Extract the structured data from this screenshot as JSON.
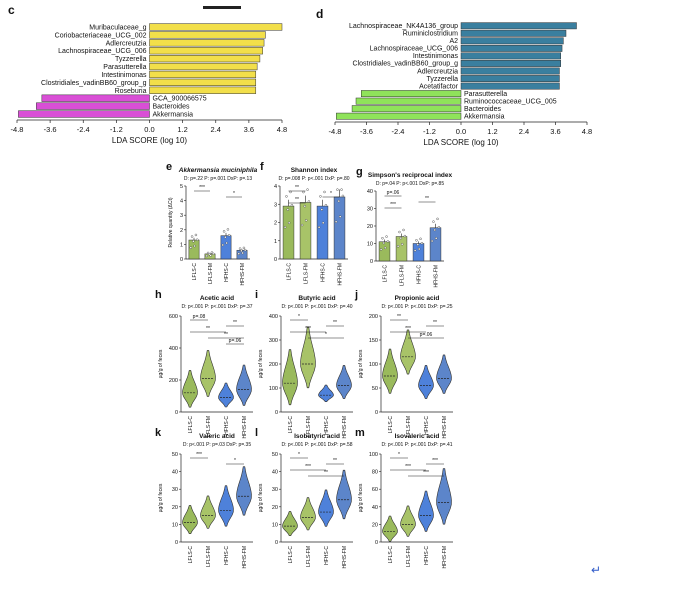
{
  "colors": {
    "yellow": "#f2df4a",
    "magenta": "#d94fd6",
    "blue": "#3a7f9f",
    "green": "#8fe35a",
    "lf_c": "#8fb34a",
    "lf_fm": "#9ebd58",
    "hf_c": "#3b73d6",
    "hf_fm": "#4a78c4",
    "return": "#2d59c8"
  },
  "panel_c": {
    "letter": "c",
    "xlabel": "LDA SCORE (log 10)",
    "ticks": [
      "-4.8",
      "-3.6",
      "-2.4",
      "-1.2",
      "0.0",
      "1.2",
      "2.4",
      "3.6",
      "4.8"
    ],
    "tick_values": [
      -4.8,
      -3.6,
      -2.4,
      -1.2,
      0,
      1.2,
      2.4,
      3.6,
      4.8
    ],
    "bars": [
      {
        "label": "Muribaculaceae_g",
        "value": 4.8,
        "group": "pos"
      },
      {
        "label": "Coriobacteriaceae_UCG_002",
        "value": 4.2,
        "group": "pos"
      },
      {
        "label": "Adlercreutzia",
        "value": 4.15,
        "group": "pos"
      },
      {
        "label": "Lachnospiraceae_UCG_006",
        "value": 4.1,
        "group": "pos"
      },
      {
        "label": "Tyzzerella",
        "value": 4.0,
        "group": "pos"
      },
      {
        "label": "Parasutterella",
        "value": 3.9,
        "group": "pos"
      },
      {
        "label": "Intestinimonas",
        "value": 3.85,
        "group": "pos"
      },
      {
        "label": "Clostridiales_vadinBB60_group_g",
        "value": 3.85,
        "group": "pos"
      },
      {
        "label": "Roseburia",
        "value": 3.85,
        "group": "pos"
      },
      {
        "label": "GCA_900066575",
        "value": -3.9,
        "group": "neg"
      },
      {
        "label": "Bacteroides",
        "value": -4.1,
        "group": "neg"
      },
      {
        "label": "Akkermansia",
        "value": -4.75,
        "group": "neg"
      }
    ]
  },
  "panel_d": {
    "letter": "d",
    "xlabel": "LDA SCORE (log 10)",
    "ticks": [
      "-4.8",
      "-3.6",
      "-2.4",
      "-1.2",
      "0.0",
      "1.2",
      "2.4",
      "3.6",
      "4.8"
    ],
    "tick_values": [
      -4.8,
      -3.6,
      -2.4,
      -1.2,
      0,
      1.2,
      2.4,
      3.6,
      4.8
    ],
    "bars": [
      {
        "label": "Lachnospiraceae_NK4A136_group",
        "value": 4.4,
        "group": "pos"
      },
      {
        "label": "Ruminiclostridium",
        "value": 4.0,
        "group": "pos"
      },
      {
        "label": "A2",
        "value": 3.9,
        "group": "pos"
      },
      {
        "label": "Lachnospiraceae_UCG_006",
        "value": 3.85,
        "group": "pos"
      },
      {
        "label": "Intestinimonas",
        "value": 3.8,
        "group": "pos"
      },
      {
        "label": "Clostridiales_vadinBB60_group_g",
        "value": 3.8,
        "group": "pos"
      },
      {
        "label": "Adlercreutzia",
        "value": 3.75,
        "group": "pos"
      },
      {
        "label": "Tyzzerella",
        "value": 3.75,
        "group": "pos"
      },
      {
        "label": "Acetatifactor",
        "value": 3.75,
        "group": "pos"
      },
      {
        "label": "Parasutterella",
        "value": -3.8,
        "group": "neg"
      },
      {
        "label": "Ruminococcaceae_UCG_005",
        "value": -4.0,
        "group": "neg"
      },
      {
        "label": "Bacteroides",
        "value": -4.15,
        "group": "neg"
      },
      {
        "label": "Akkermansia",
        "value": -4.75,
        "group": "neg"
      }
    ]
  },
  "groups": [
    "LFLS-C",
    "LFLS-FM",
    "HFHS-C",
    "HFHS-FM"
  ],
  "bar_panels": [
    {
      "id": "e",
      "letter": "e",
      "title": "Akkermansia muciniphila",
      "italic": true,
      "stats": "D: p=.22   P: p=.001   DxP: p=.13",
      "ylabel": "Relative quantity (ΔCt)",
      "ylim": [
        0,
        5
      ],
      "yticks": [
        "0",
        "1",
        "2",
        "3",
        "4",
        "5"
      ],
      "values": [
        1.3,
        0.35,
        1.6,
        0.6
      ],
      "sig": [
        "***",
        "*"
      ]
    },
    {
      "id": "f",
      "letter": "f",
      "title": "Shannon index",
      "italic": false,
      "stats": "D: p=.008   P: p<.001   DxP: p=.80",
      "ylabel": "",
      "ylim": [
        0,
        4
      ],
      "yticks": [
        "0",
        "1",
        "2",
        "3",
        "4"
      ],
      "values": [
        2.9,
        3.1,
        2.9,
        3.4
      ],
      "sig": [
        "**",
        "*",
        "**"
      ]
    },
    {
      "id": "g",
      "letter": "g",
      "title": "Simpson's reciprocal index",
      "italic": false,
      "stats": "D: p=.04   P: p<.001   DxP: p=.85",
      "ylabel": "",
      "ylim": [
        0,
        40
      ],
      "yticks": [
        "0",
        "10",
        "20",
        "30",
        "40"
      ],
      "values": [
        11,
        14,
        10,
        19
      ],
      "sig": [
        "p=.06",
        "**",
        "***"
      ]
    }
  ],
  "violin_panels": [
    {
      "id": "h",
      "letter": "h",
      "title": "Acetic acid",
      "stats": "D: p<.001   P: p<.001   DxP: p=.37",
      "ylabel": "µg/g of feces",
      "ylim": [
        0,
        600
      ],
      "yticks": [
        "0",
        "200",
        "400",
        "600"
      ],
      "medians": [
        120,
        210,
        90,
        140
      ],
      "spread": [
        200,
        250,
        130,
        220
      ],
      "sig": [
        "p=.08",
        "**",
        "**",
        "**",
        "p=.06"
      ]
    },
    {
      "id": "i",
      "letter": "i",
      "title": "Butyric acid",
      "stats": "D: p<.001   P: p<.001   DxP: p=.40",
      "ylabel": "µg/g of feces",
      "ylim": [
        0,
        400
      ],
      "yticks": [
        "0",
        "100",
        "200",
        "300",
        "400"
      ],
      "medians": [
        120,
        200,
        70,
        110
      ],
      "spread": [
        200,
        220,
        60,
        120
      ],
      "sig": [
        "*",
        "**",
        "***",
        "*"
      ]
    },
    {
      "id": "j",
      "letter": "j",
      "title": "Propionic acid",
      "stats": "D: p<.001   P: p<.001   DxP: p=.25",
      "ylabel": "µg/g of feces",
      "ylim": [
        0,
        200
      ],
      "yticks": [
        "0",
        "50",
        "100",
        "150",
        "200"
      ],
      "medians": [
        75,
        115,
        55,
        70
      ],
      "spread": [
        80,
        80,
        60,
        70
      ],
      "sig": [
        "**",
        "**",
        "***",
        "p=.06"
      ]
    },
    {
      "id": "k",
      "letter": "k",
      "title": "Valeric acid",
      "stats": "D: p<.001   P: p=.03   DxP: p=.35",
      "ylabel": "µg/g of feces",
      "ylim": [
        0,
        50
      ],
      "yticks": [
        "0",
        "10",
        "20",
        "30",
        "40",
        "50"
      ],
      "medians": [
        11,
        15,
        18,
        26
      ],
      "spread": [
        14,
        16,
        20,
        24
      ],
      "sig": [
        "***",
        "*"
      ]
    },
    {
      "id": "l",
      "letter": "l",
      "title": "Isobutyric acid",
      "stats": "D: p<.001   P: p<.001   DxP: p=.58",
      "ylabel": "µg/g of feces",
      "ylim": [
        0,
        50
      ],
      "yticks": [
        "0",
        "10",
        "20",
        "30",
        "40",
        "50"
      ],
      "medians": [
        9,
        14,
        17,
        24
      ],
      "spread": [
        12,
        16,
        18,
        24
      ],
      "sig": [
        "*",
        "**",
        "***",
        "**"
      ]
    },
    {
      "id": "m",
      "letter": "m",
      "title": "Isovaleric acid",
      "stats": "D: p<.001   P: p<.001   DxP: p=.41",
      "ylabel": "µg/g of feces",
      "ylim": [
        0,
        100
      ],
      "yticks": [
        "0",
        "20",
        "40",
        "60",
        "80",
        "100"
      ],
      "medians": [
        12,
        20,
        30,
        45
      ],
      "spread": [
        25,
        30,
        40,
        55
      ],
      "sig": [
        "*",
        "***",
        "***",
        "***"
      ]
    }
  ],
  "return_mark": "↵"
}
